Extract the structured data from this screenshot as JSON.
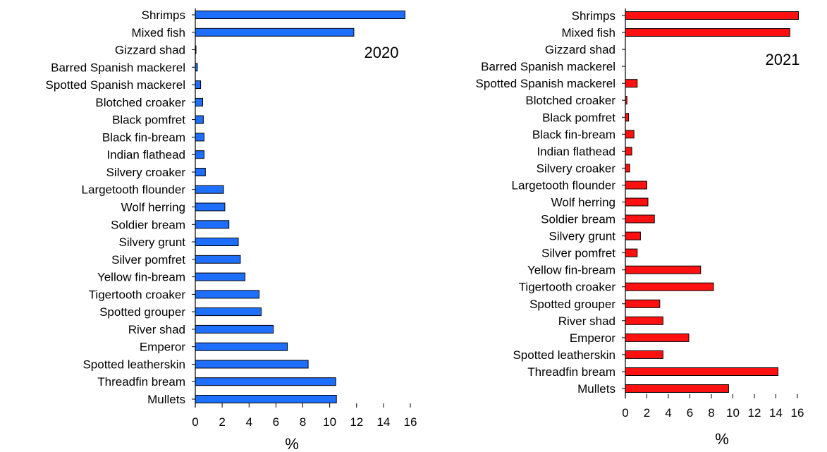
{
  "chart_data": [
    {
      "type": "bar",
      "orientation": "horizontal",
      "annotation": "2020",
      "categories": [
        "Shrimps",
        "Mixed fish",
        "Gizzard shad",
        "Barred Spanish mackerel",
        "Spotted Spanish mackerel",
        "Blotched croaker",
        "Black pomfret",
        "Black fin-bream",
        "Indian flathead",
        "Silvery croaker",
        "Largetooth flounder",
        "Wolf herring",
        "Soldier bream",
        "Silvery grunt",
        "Silver pomfret",
        "Yellow fin-bream",
        "Tigertooth croaker",
        "Spotted grouper",
        "River shad",
        "Emperor",
        "Spotted leatherskin",
        "Threadfin bream",
        "Mullets"
      ],
      "values": [
        15.6,
        11.8,
        0.05,
        0.15,
        0.4,
        0.55,
        0.6,
        0.65,
        0.65,
        0.75,
        2.1,
        2.2,
        2.5,
        3.2,
        3.35,
        3.7,
        4.75,
        4.9,
        5.8,
        6.85,
        8.4,
        10.45,
        10.5
      ],
      "xlabel": "%",
      "xlim": [
        0,
        16
      ],
      "xticks": [
        "0",
        "2",
        "4",
        "6",
        "8",
        "10",
        "12",
        "14",
        "16"
      ],
      "color": "#1f6fff",
      "grid": false
    },
    {
      "type": "bar",
      "orientation": "horizontal",
      "annotation": "2021",
      "categories": [
        "Shrimps",
        "Mixed fish",
        "Gizzard shad",
        "Barred Spanish mackerel",
        "Spotted Spanish mackerel",
        "Blotched croaker",
        "Black pomfret",
        "Black fin-bream",
        "Indian flathead",
        "Silvery croaker",
        "Largetooth flounder",
        "Wolf herring",
        "Soldier bream",
        "Silvery grunt",
        "Silver pomfret",
        "Yellow fin-bream",
        "Tigertooth croaker",
        "Spotted grouper",
        "River shad",
        "Emperor",
        "Spotted leatherskin",
        "Threadfin bream",
        "Mullets"
      ],
      "values": [
        16.1,
        15.3,
        0.0,
        0.0,
        1.1,
        0.15,
        0.3,
        0.8,
        0.6,
        0.4,
        2.0,
        2.1,
        2.7,
        1.4,
        1.1,
        7.0,
        8.2,
        3.2,
        3.5,
        5.9,
        3.5,
        14.2,
        9.6
      ],
      "xlabel": "%",
      "xlim": [
        0,
        16
      ],
      "xticks": [
        "0",
        "2",
        "4",
        "6",
        "8",
        "10",
        "12",
        "14",
        "16"
      ],
      "color": "#ff1111",
      "grid": false
    }
  ]
}
